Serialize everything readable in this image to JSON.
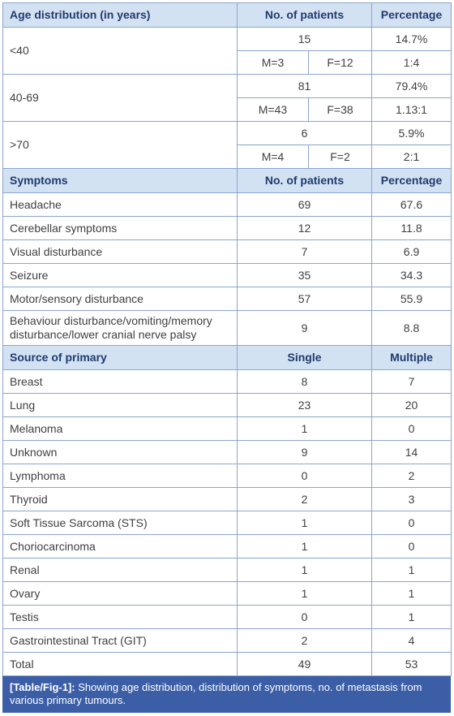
{
  "age_section": {
    "header": {
      "label": "Age distribution (in years)",
      "patients": "No. of patients",
      "percentage": "Percentage"
    },
    "rows": [
      {
        "label": "<40",
        "patients": 15,
        "percentage": "14.7%",
        "male": "M=3",
        "female": "F=12",
        "ratio": "1:4"
      },
      {
        "label": "40-69",
        "patients": 81,
        "percentage": "79.4%",
        "male": "M=43",
        "female": "F=38",
        "ratio": "1.13:1"
      },
      {
        "label": ">70",
        "patients": 6,
        "percentage": "5.9%",
        "male": "M=4",
        "female": "F=2",
        "ratio": "2:1"
      }
    ]
  },
  "symptoms_section": {
    "header": {
      "label": "Symptoms",
      "patients": "No. of patients",
      "percentage": "Percentage"
    },
    "rows": [
      {
        "label": "Headache",
        "patients": 69,
        "percentage": 67.6
      },
      {
        "label": "Cerebellar symptoms",
        "patients": 12,
        "percentage": 11.8
      },
      {
        "label": "Visual disturbance",
        "patients": 7,
        "percentage": 6.9
      },
      {
        "label": "Seizure",
        "patients": 35,
        "percentage": 34.3
      },
      {
        "label": "Motor/sensory disturbance",
        "patients": 57,
        "percentage": 55.9
      },
      {
        "label": "Behaviour disturbance/vomiting/memory disturbance/lower cranial nerve palsy",
        "patients": 9,
        "percentage": 8.8
      }
    ]
  },
  "source_section": {
    "header": {
      "label": "Source of primary",
      "single": "Single",
      "multiple": "Multiple"
    },
    "rows": [
      {
        "label": "Breast",
        "single": 8,
        "multiple": 7
      },
      {
        "label": "Lung",
        "single": 23,
        "multiple": 20
      },
      {
        "label": "Melanoma",
        "single": 1,
        "multiple": 0
      },
      {
        "label": "Unknown",
        "single": 9,
        "multiple": 14
      },
      {
        "label": "Lymphoma",
        "single": 0,
        "multiple": 2
      },
      {
        "label": "Thyroid",
        "single": 2,
        "multiple": 3
      },
      {
        "label": "Soft Tissue Sarcoma (STS)",
        "single": 1,
        "multiple": 0
      },
      {
        "label": "Choriocarcinoma",
        "single": 1,
        "multiple": 0
      },
      {
        "label": "Renal",
        "single": 1,
        "multiple": 1
      },
      {
        "label": "Ovary",
        "single": 1,
        "multiple": 1
      },
      {
        "label": "Testis",
        "single": 0,
        "multiple": 1
      },
      {
        "label": "Gastrointestinal Tract (GIT)",
        "single": 2,
        "multiple": 4
      },
      {
        "label": "Total",
        "single": 49,
        "multiple": 53
      }
    ]
  },
  "caption": {
    "label": "[Table/Fig-1]:",
    "text": "Showing age distribution, distribution of symptoms, no. of metastasis from various primary tumours."
  }
}
